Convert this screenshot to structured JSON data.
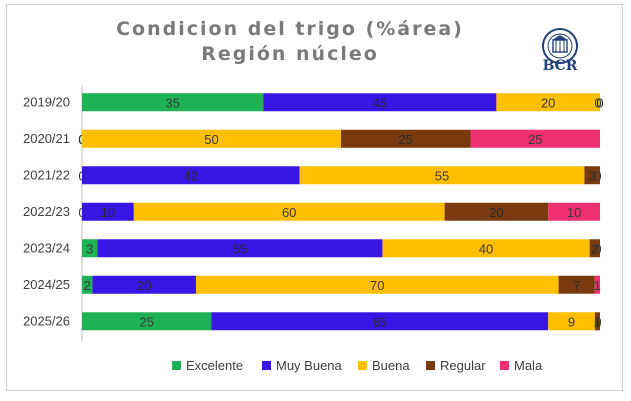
{
  "title_line1": "Condicion del trigo (%área)",
  "title_line2": "Región núcleo",
  "logo_text": "BCR",
  "chart_data": {
    "type": "bar",
    "orientation": "horizontal-stacked-100",
    "title": "Condicion del trigo (%área) Región núcleo",
    "categories": [
      "2019/20",
      "2020/21",
      "2021/22",
      "2022/23",
      "2023/24",
      "2024/25",
      "2025/26"
    ],
    "series": [
      {
        "name": "Excelente",
        "color": "#1db254",
        "values": [
          35,
          0,
          0,
          0,
          3,
          2,
          25
        ]
      },
      {
        "name": "Muy Buena",
        "color": "#3a16e6",
        "values": [
          45,
          0,
          42,
          10,
          55,
          20,
          65
        ]
      },
      {
        "name": "Buena",
        "color": "#ffbe00",
        "values": [
          20,
          50,
          55,
          60,
          40,
          70,
          9
        ]
      },
      {
        "name": "Regular",
        "color": "#7a3a10",
        "values": [
          0,
          25,
          3,
          20,
          2,
          7,
          1
        ]
      },
      {
        "name": "Mala",
        "color": "#f0306e",
        "values": [
          0,
          25,
          0,
          10,
          0,
          1,
          0
        ]
      }
    ],
    "xlim": [
      0,
      100
    ],
    "grid": false,
    "legend_position": "bottom"
  }
}
